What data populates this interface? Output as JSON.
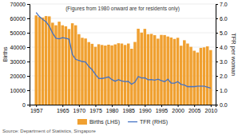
{
  "chart_data": {
    "type": "bar",
    "x": [
      1957,
      1958,
      1959,
      1960,
      1961,
      1962,
      1963,
      1964,
      1965,
      1966,
      1967,
      1968,
      1969,
      1970,
      1971,
      1972,
      1973,
      1974,
      1975,
      1976,
      1977,
      1978,
      1979,
      1980,
      1981,
      1982,
      1983,
      1984,
      1985,
      1986,
      1987,
      1988,
      1989,
      1990,
      1991,
      1992,
      1993,
      1994,
      1995,
      1996,
      1997,
      1998,
      1999,
      2000,
      2001,
      2002,
      2003,
      2004,
      2005,
      2006,
      2007,
      2008,
      2009,
      2010
    ],
    "series": [
      {
        "name": "Births (LHS)",
        "type": "bar",
        "color": "#f0a030",
        "values": [
          62050,
          61000,
          60600,
          61600,
          61400,
          57000,
          55200,
          57700,
          55200,
          54500,
          52600,
          56600,
          55200,
          49000,
          46500,
          46000,
          43500,
          42300,
          40200,
          42000,
          41500,
          41100,
          41700,
          41200,
          41900,
          42700,
          42500,
          41500,
          42500,
          38900,
          43600,
          52800,
          50100,
          52700,
          49000,
          49200,
          48300,
          45900,
          48500,
          48400,
          47400,
          46700,
          45700,
          46500,
          41000,
          44800,
          42500,
          40200,
          37500,
          36300,
          39490,
          39826,
          40540,
          37967
        ]
      },
      {
        "name": "TFR (RHS)",
        "type": "line",
        "axis": "y2",
        "color": "#4472c4",
        "values": [
          6.41,
          6.12,
          5.93,
          5.76,
          5.45,
          4.98,
          4.62,
          4.58,
          4.66,
          4.62,
          4.55,
          3.5,
          3.15,
          3.07,
          3.0,
          2.96,
          2.65,
          2.43,
          2.1,
          1.83,
          1.82,
          1.87,
          1.93,
          1.74,
          1.63,
          1.74,
          1.65,
          1.6,
          1.61,
          1.42,
          1.57,
          1.96,
          1.85,
          1.87,
          1.73,
          1.74,
          1.7,
          1.77,
          1.67,
          1.6,
          1.77,
          1.5,
          1.49,
          1.6,
          1.41,
          1.37,
          1.25,
          1.26,
          1.25,
          1.28,
          1.29,
          1.28,
          1.22,
          1.15
        ]
      }
    ],
    "xlim": [
      1955.0,
      2011.5
    ],
    "xticks": [
      1957,
      1965,
      1970,
      1975,
      1980,
      1985,
      1990,
      1995,
      2000,
      2005,
      2010
    ],
    "ylim": [
      0,
      70000
    ],
    "yticks": [
      0,
      10000,
      20000,
      30000,
      40000,
      50000,
      60000,
      70000
    ],
    "y2lim": [
      0.0,
      7.0
    ],
    "y2ticks": [
      {
        "value": 0.0,
        "label": "0.0"
      },
      {
        "value": 1.0,
        "label": "1.0"
      },
      {
        "value": 2.0,
        "label": "2.0"
      },
      {
        "value": 3.0,
        "label": "3.0"
      },
      {
        "value": 4.0,
        "label": "4.0"
      },
      {
        "value": 5.0,
        "label": "5.0"
      },
      {
        "value": 6.0,
        "label": "6.0"
      },
      {
        "value": 7.0,
        "label": "7.0"
      }
    ],
    "ylabel": "Births",
    "y2label": "TFR per woman",
    "annotations": [
      "(Figures from 1980 onward are for residents only)",
      "Source: Department of Statistics, Singapore"
    ],
    "grid": true,
    "legend": "bottom"
  }
}
